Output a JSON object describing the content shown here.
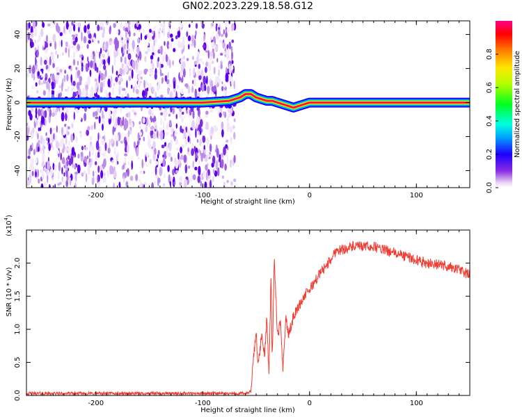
{
  "title": "GN02.2023.229.18.58.G12",
  "chart_data": [
    {
      "type": "heatmap",
      "name": "spectrogram",
      "xlabel": "Height of straight line (km)",
      "ylabel": "Frequency (Hz)",
      "xlim": [
        -265,
        150
      ],
      "ylim": [
        -50,
        48
      ],
      "xticks": [
        -200,
        -100,
        0,
        100
      ],
      "yticks": [
        -40,
        -20,
        0,
        20,
        40
      ],
      "grid": false,
      "noise_region_x": [
        -265,
        -70
      ],
      "signal_track": {
        "x": [
          -265,
          -200,
          -150,
          -100,
          -75,
          -65,
          -60,
          -55,
          -50,
          -45,
          -40,
          -35,
          -30,
          -25,
          -20,
          -15,
          -10,
          -5,
          0,
          50,
          100,
          150
        ],
        "freq": [
          0,
          0,
          0,
          0,
          1,
          3,
          5,
          5,
          3,
          2,
          1,
          1,
          0,
          -1,
          -2,
          -3,
          -2,
          -1,
          0,
          0,
          0,
          0
        ]
      },
      "colorbar": {
        "label": "Normalized spectral amplitude",
        "range": [
          0,
          1
        ],
        "ticks": [
          "0.0",
          "0.2",
          "0.4",
          "0.6",
          "0.8"
        ]
      }
    },
    {
      "type": "line",
      "name": "snr",
      "xlabel": "Height of straight line (km)",
      "ylabel": "SNR (10 * v/v)",
      "exponent_label": "(x10",
      "exponent_sup": "4",
      "exponent_close": ")",
      "xlim": [
        -265,
        150
      ],
      "ylim": [
        0,
        2.5
      ],
      "xticks": [
        -200,
        -100,
        0,
        100
      ],
      "yticks": [
        0,
        0.5,
        1.0,
        1.5,
        2.0
      ],
      "ytick_labels": [
        "0.0",
        "0.5",
        "1.0",
        "1.5",
        "2.0"
      ],
      "grid": false,
      "series": [
        {
          "color": "#ef3b32",
          "x": [
            -265,
            -200,
            -150,
            -100,
            -60,
            -55,
            -52,
            -50,
            -48,
            -45,
            -42,
            -40,
            -38,
            -36,
            -35,
            -33,
            -30,
            -27,
            -25,
            -22,
            -20,
            -15,
            -10,
            -5,
            0,
            10,
            20,
            25,
            30,
            40,
            50,
            60,
            70,
            80,
            90,
            100,
            110,
            120,
            130,
            140,
            150
          ],
          "y": [
            0.03,
            0.03,
            0.03,
            0.03,
            0.03,
            0.05,
            0.65,
            0.95,
            0.45,
            0.9,
            0.6,
            1.2,
            0.3,
            1.9,
            0.5,
            2.05,
            0.9,
            1.1,
            0.4,
            1.2,
            0.9,
            1.2,
            1.35,
            1.5,
            1.6,
            1.85,
            2.05,
            2.2,
            2.2,
            2.25,
            2.25,
            2.25,
            2.2,
            2.15,
            2.1,
            2.05,
            2.0,
            1.98,
            1.95,
            1.9,
            1.82
          ],
          "noise_amplitude": 0.08
        }
      ]
    }
  ]
}
